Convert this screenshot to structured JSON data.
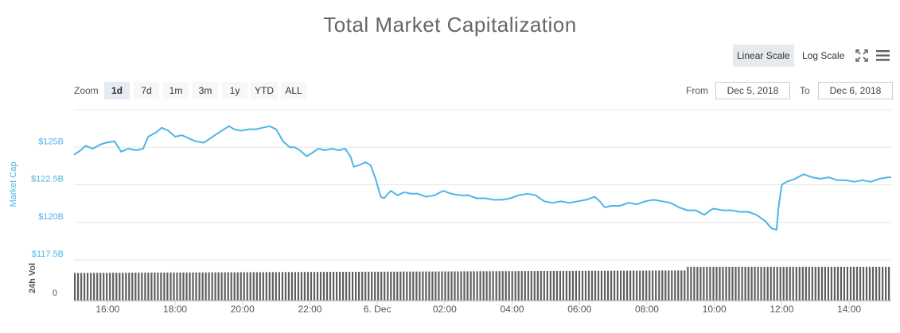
{
  "title": "Total Market Capitalization",
  "scale": {
    "linear_label": "Linear Scale",
    "log_label": "Log Scale",
    "active": "linear"
  },
  "icons": {
    "fullscreen": "expand-icon",
    "menu": "hamburger-menu-icon"
  },
  "zoom": {
    "label": "Zoom",
    "buttons": [
      "1d",
      "7d",
      "1m",
      "3m",
      "1y",
      "YTD",
      "ALL"
    ],
    "active": "1d"
  },
  "range": {
    "from_label": "From",
    "from_value": "Dec 5, 2018",
    "to_label": "To",
    "to_value": "Dec 6, 2018"
  },
  "colors": {
    "line": "#4db5e6",
    "volume": "#5f5f5f",
    "axis_label": "#4db5e6",
    "grid": "#e6e6e6"
  },
  "chart_data": {
    "type": "line",
    "title": "Total Market Capitalization",
    "ylabel": "Market Cap",
    "ylim": [
      117.5,
      127.5
    ],
    "yticks": [
      "$117.5B",
      "$120B",
      "$122.5B",
      "$125B"
    ],
    "xlabel": "",
    "xlim": [
      15.0,
      39.25
    ],
    "xticks": [
      {
        "x": 16,
        "label": "16:00"
      },
      {
        "x": 18,
        "label": "18:00"
      },
      {
        "x": 20,
        "label": "20:00"
      },
      {
        "x": 22,
        "label": "22:00"
      },
      {
        "x": 24,
        "label": "6. Dec"
      },
      {
        "x": 26,
        "label": "02:00"
      },
      {
        "x": 28,
        "label": "04:00"
      },
      {
        "x": 30,
        "label": "06:00"
      },
      {
        "x": 32,
        "label": "08:00"
      },
      {
        "x": 34,
        "label": "10:00"
      },
      {
        "x": 36,
        "label": "12:00"
      },
      {
        "x": 38,
        "label": "14:00"
      }
    ],
    "grid": true,
    "series": [
      {
        "x": [
          15.0,
          15.2,
          15.35,
          15.55,
          15.8,
          15.95,
          16.2,
          16.4,
          16.6,
          16.85,
          17.05,
          17.2,
          17.45,
          17.6,
          17.8,
          18.0,
          18.2,
          18.4,
          18.6,
          18.85,
          19.05,
          19.25,
          19.45,
          19.6,
          19.75,
          19.95,
          20.2,
          20.4,
          20.6,
          20.8,
          21.0,
          21.2,
          21.4,
          21.55,
          21.7,
          21.9,
          22.05,
          22.25,
          22.45,
          22.65,
          22.85,
          23.05,
          23.2,
          23.3,
          23.45,
          23.65,
          23.8,
          23.95,
          24.1,
          24.2,
          24.4,
          24.6,
          24.8,
          25.0,
          25.2,
          25.45,
          25.7,
          25.95,
          26.2,
          26.45,
          26.7,
          26.95,
          27.2,
          27.45,
          27.7,
          27.95,
          28.2,
          28.45,
          28.7,
          28.95,
          29.2,
          29.45,
          29.7,
          29.95,
          30.2,
          30.45,
          30.6,
          30.75,
          30.95,
          31.2,
          31.45,
          31.7,
          31.95,
          32.2,
          32.45,
          32.7,
          32.95,
          33.2,
          33.45,
          33.7,
          33.95,
          34.0,
          34.25,
          34.5,
          34.75,
          35.0,
          35.25,
          35.5,
          35.7,
          35.85,
          35.9,
          36.0,
          36.15,
          36.4,
          36.65,
          36.9,
          37.15,
          37.4,
          37.65,
          37.9,
          38.15,
          38.4,
          38.65,
          38.9,
          39.15,
          39.25
        ],
        "y": [
          124.5,
          124.8,
          125.1,
          124.9,
          125.2,
          125.3,
          125.4,
          124.7,
          124.9,
          124.8,
          124.9,
          125.7,
          126.0,
          126.3,
          126.1,
          125.7,
          125.8,
          125.6,
          125.4,
          125.3,
          125.6,
          125.9,
          126.2,
          126.4,
          126.2,
          126.1,
          126.2,
          126.2,
          126.3,
          126.4,
          126.2,
          125.4,
          125.0,
          125.0,
          124.8,
          124.4,
          124.6,
          124.9,
          124.8,
          124.9,
          124.8,
          124.9,
          124.4,
          123.7,
          123.8,
          124.0,
          123.8,
          122.9,
          121.7,
          121.6,
          122.1,
          121.8,
          122.0,
          121.9,
          121.9,
          121.7,
          121.8,
          122.1,
          121.9,
          121.8,
          121.8,
          121.6,
          121.6,
          121.5,
          121.5,
          121.6,
          121.8,
          121.9,
          121.8,
          121.4,
          121.3,
          121.4,
          121.3,
          121.4,
          121.5,
          121.7,
          121.4,
          121.0,
          121.1,
          121.1,
          121.3,
          121.2,
          121.4,
          121.5,
          121.4,
          121.3,
          121.0,
          120.8,
          120.8,
          120.5,
          120.9,
          120.9,
          120.8,
          120.8,
          120.7,
          120.7,
          120.5,
          120.1,
          119.6,
          119.5,
          120.9,
          122.5,
          122.7,
          122.9,
          123.2,
          123.0,
          122.9,
          123.0,
          122.8,
          122.8,
          122.7,
          122.8,
          122.7,
          122.9,
          123.0,
          123.0
        ]
      }
    ],
    "volume": {
      "label": "24h Vol",
      "zero_label": "0",
      "start_level": 0.72,
      "end_level": 0.88
    }
  }
}
